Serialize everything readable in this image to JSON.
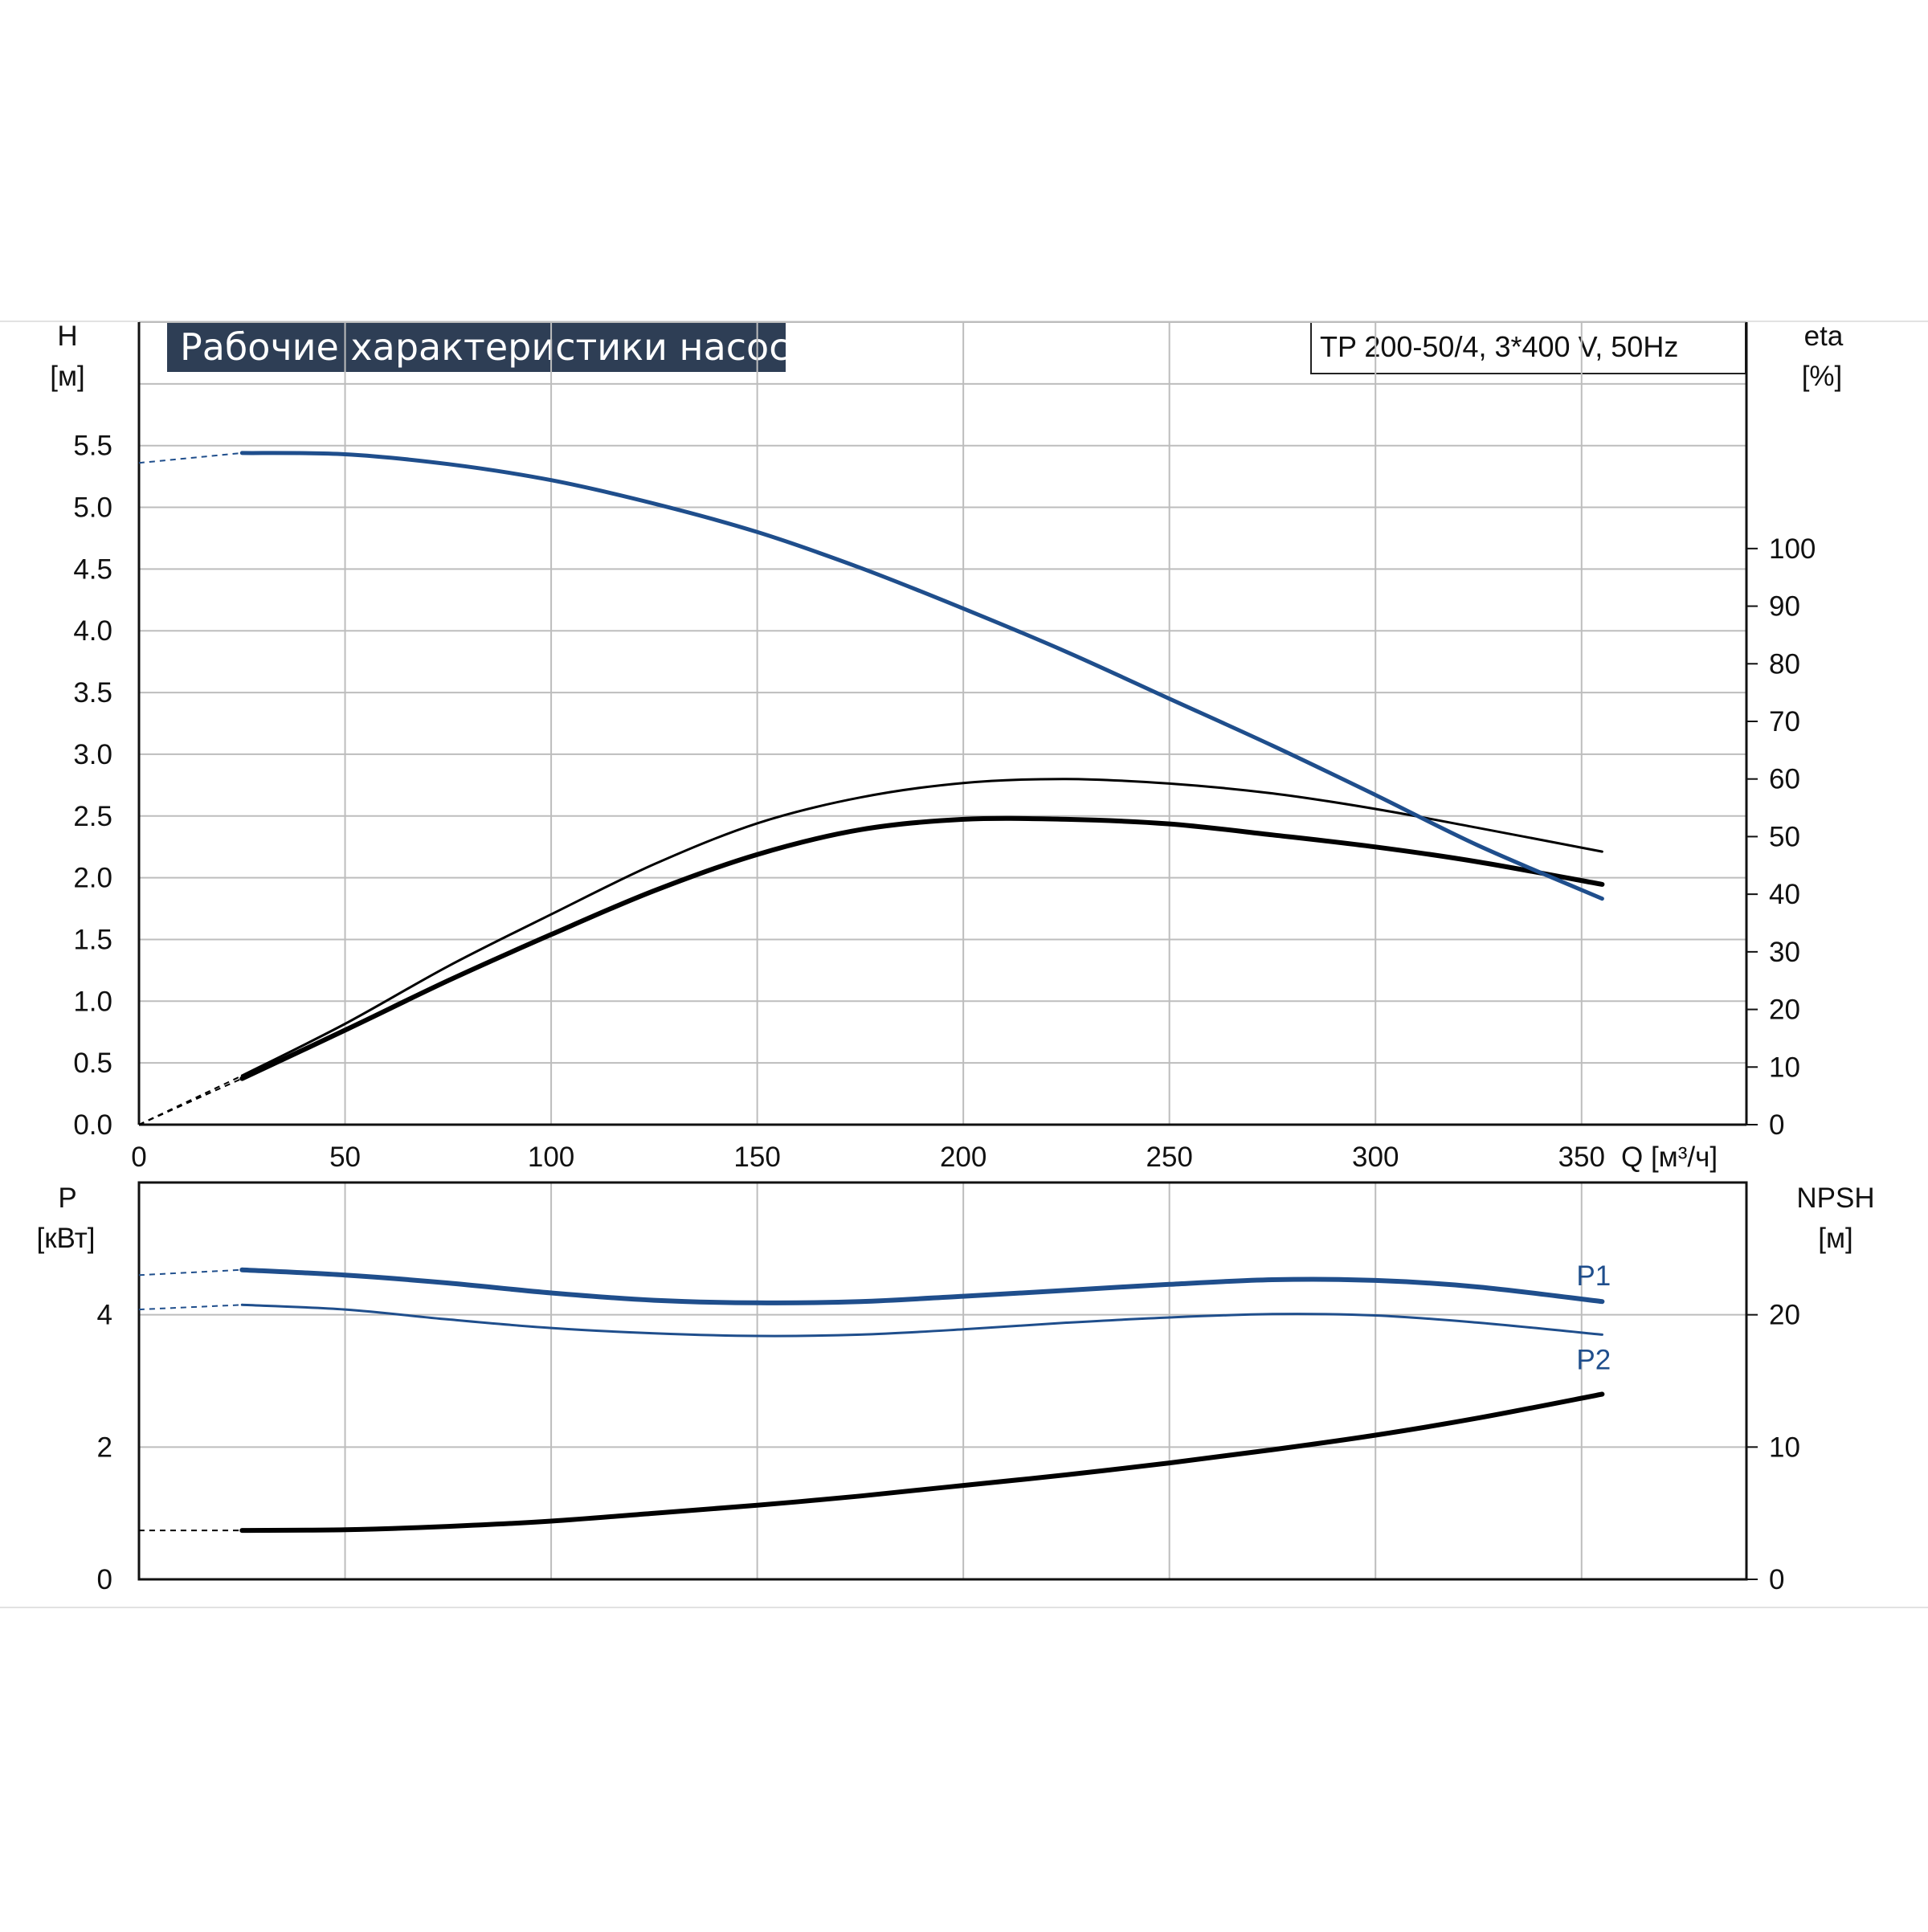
{
  "chart_data": [
    {
      "type": "line",
      "title": "Рабочие характеристики насоса",
      "subtitle": "TP 200-50/4, 3*400 V, 50Hz",
      "xlabel": "Q [м³/ч]",
      "ylabel": "H",
      "ylabel_unit": "[м]",
      "y2label": "eta",
      "y2label_unit": "[%]",
      "xlim": [
        0,
        390
      ],
      "ylim": [
        0,
        6.5
      ],
      "y2lim": [
        0,
        139.3
      ],
      "x_ticks": [
        "0",
        "50",
        "100",
        "150",
        "200",
        "250",
        "300",
        "350"
      ],
      "y_ticks": [
        "0.0",
        "0.5",
        "1.0",
        "1.5",
        "2.0",
        "2.5",
        "3.0",
        "3.5",
        "4.0",
        "4.5",
        "5.0",
        "5.5"
      ],
      "y2_ticks": [
        "0",
        "10",
        "20",
        "30",
        "40",
        "50",
        "60",
        "70",
        "80",
        "90",
        "100"
      ],
      "grid": true,
      "series": [
        {
          "axis": "left",
          "color": "#1f4e8c",
          "x": [
            0,
            25,
            50,
            75,
            100,
            125,
            150,
            175,
            200,
            225,
            250,
            275,
            300,
            325,
            355
          ],
          "values": [
            5.36,
            5.44,
            5.43,
            5.35,
            5.22,
            5.03,
            4.8,
            4.51,
            4.18,
            3.83,
            3.45,
            3.07,
            2.67,
            2.26,
            1.83
          ],
          "dashed_until": 25
        },
        {
          "axis": "right",
          "color": "#000000",
          "x": [
            0,
            25,
            50,
            75,
            100,
            125,
            150,
            175,
            200,
            225,
            250,
            275,
            300,
            325,
            355
          ],
          "values": [
            0,
            8.5,
            17.5,
            27.5,
            36.5,
            45.2,
            52.3,
            56.8,
            59.3,
            60.0,
            59.2,
            57.5,
            54.8,
            51.5,
            47.4
          ],
          "dashed_until": 25,
          "stroke": 3
        },
        {
          "axis": "right",
          "color": "#000000",
          "x": [
            0,
            25,
            50,
            75,
            100,
            125,
            150,
            175,
            200,
            225,
            250,
            275,
            300,
            325,
            355
          ],
          "values": [
            0,
            8.0,
            16.4,
            25.0,
            33.0,
            40.6,
            46.9,
            51.2,
            53.0,
            53.0,
            52.2,
            50.3,
            48.2,
            45.6,
            41.7
          ],
          "dashed_until": 25,
          "stroke": 6
        }
      ]
    },
    {
      "type": "line",
      "ylabel": "P",
      "ylabel_unit": "[кВт]",
      "y2label": "NPSH",
      "y2label_unit": "[м]",
      "xlim": [
        0,
        390
      ],
      "ylim": [
        0,
        6
      ],
      "y2lim": [
        0,
        30
      ],
      "y_ticks": [
        "0",
        "2",
        "4"
      ],
      "y2_ticks": [
        "0",
        "10",
        "20"
      ],
      "grid": true,
      "series": [
        {
          "name": "P1",
          "axis": "left",
          "color": "#1f4e8c",
          "x": [
            0,
            25,
            50,
            75,
            100,
            125,
            150,
            175,
            200,
            225,
            250,
            275,
            300,
            325,
            355
          ],
          "values": [
            4.6,
            4.68,
            4.6,
            4.48,
            4.33,
            4.22,
            4.18,
            4.2,
            4.28,
            4.37,
            4.46,
            4.53,
            4.52,
            4.42,
            4.2
          ],
          "dashed_until": 25,
          "stroke": 6
        },
        {
          "name": "P2",
          "axis": "left",
          "color": "#1f4e8c",
          "x": [
            0,
            25,
            50,
            75,
            100,
            125,
            150,
            175,
            200,
            225,
            250,
            275,
            300,
            325,
            355
          ],
          "values": [
            4.08,
            4.15,
            4.08,
            3.93,
            3.8,
            3.72,
            3.68,
            3.7,
            3.78,
            3.88,
            3.96,
            4.01,
            3.99,
            3.88,
            3.7
          ],
          "dashed_until": 25,
          "stroke": 3
        },
        {
          "axis": "right",
          "color": "#000000",
          "x": [
            0,
            25,
            50,
            75,
            100,
            125,
            150,
            175,
            200,
            225,
            250,
            275,
            300,
            325,
            355
          ],
          "values": [
            3.7,
            3.7,
            3.75,
            4.0,
            4.4,
            5.0,
            5.6,
            6.3,
            7.1,
            7.9,
            8.8,
            9.8,
            10.9,
            12.2,
            14.0
          ],
          "dashed_until": 25,
          "stroke": 6
        }
      ]
    }
  ]
}
